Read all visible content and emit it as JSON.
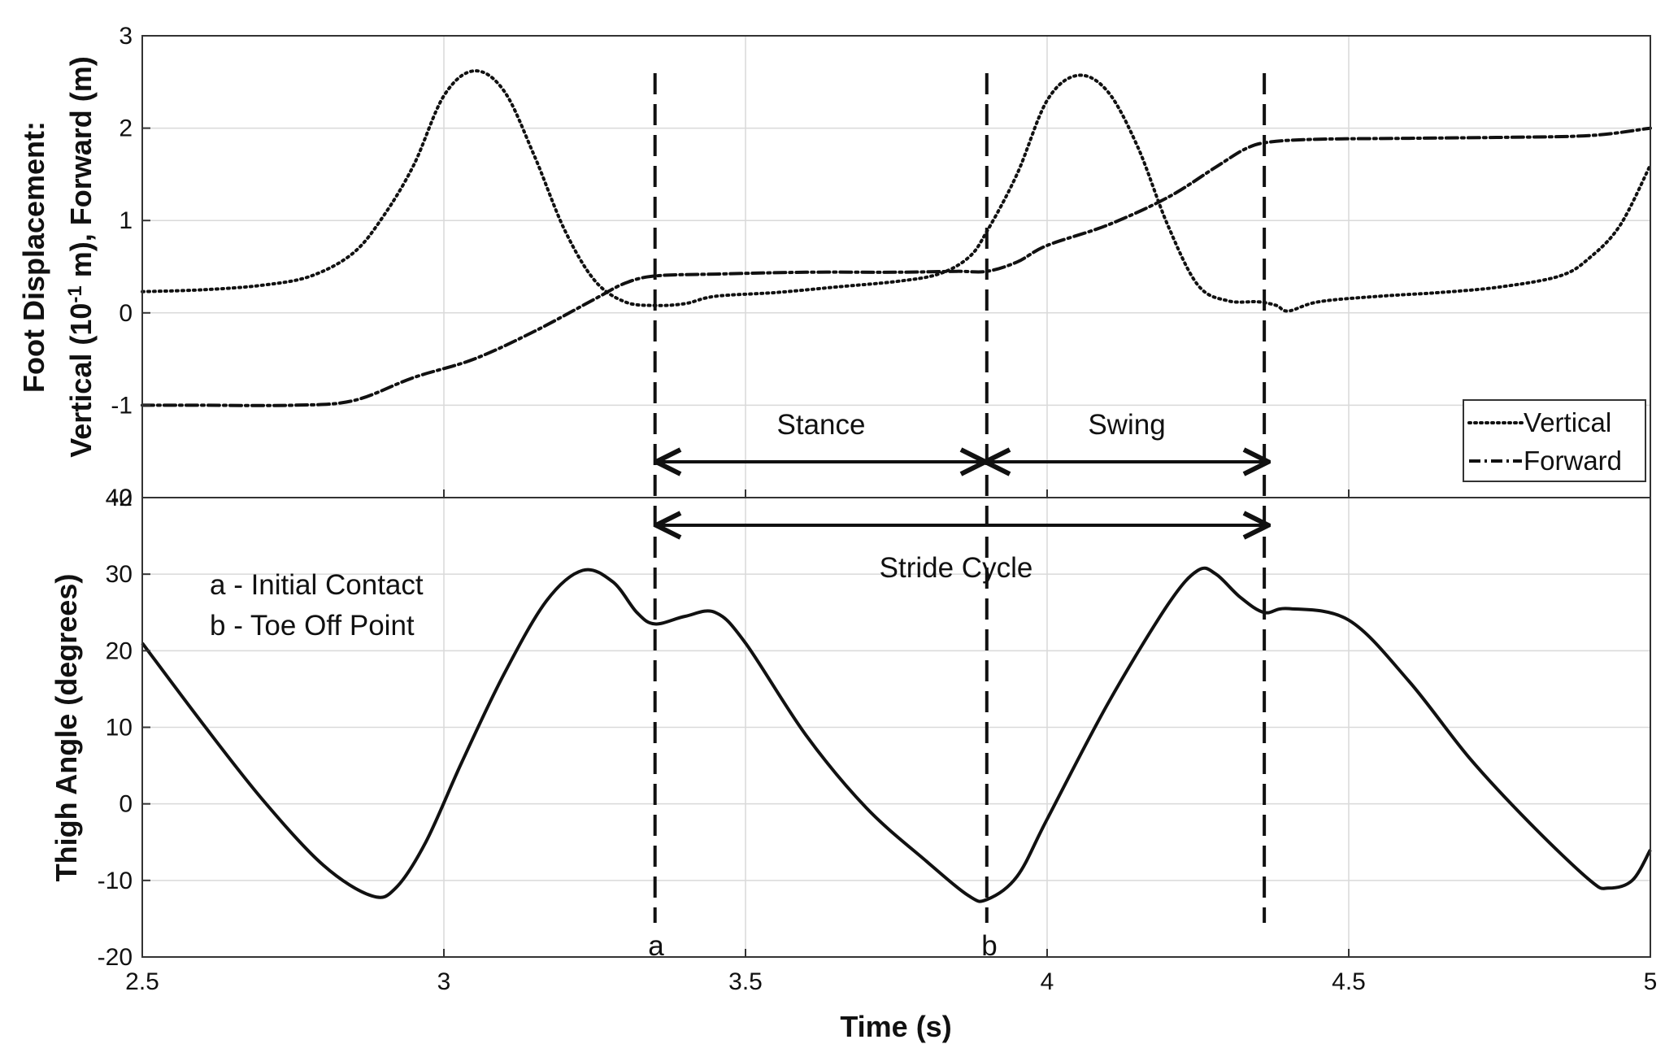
{
  "chart_data": [
    {
      "type": "line",
      "panel": "top",
      "ylabel_line1": "Foot Displacement:",
      "ylabel_line2_prefix": "Vertical (10",
      "ylabel_line2_sup": "-1",
      "ylabel_line2_suffix": " m), Forward (m)",
      "xlim": [
        2.5,
        5
      ],
      "ylim": [
        -2,
        3
      ],
      "yticks": [
        -2,
        -1,
        0,
        1,
        2,
        3
      ],
      "ytick_labels": [
        "-2",
        "-1",
        "0",
        "1",
        "2",
        "3"
      ],
      "grid": true,
      "legend_position": "bottom-right",
      "series": [
        {
          "name": "Vertical",
          "style": "dotted",
          "points": [
            [
              2.5,
              0.23
            ],
            [
              2.6,
              0.25
            ],
            [
              2.7,
              0.3
            ],
            [
              2.78,
              0.4
            ],
            [
              2.85,
              0.65
            ],
            [
              2.9,
              1.05
            ],
            [
              2.95,
              1.6
            ],
            [
              3.0,
              2.35
            ],
            [
              3.05,
              2.62
            ],
            [
              3.1,
              2.4
            ],
            [
              3.15,
              1.7
            ],
            [
              3.2,
              0.9
            ],
            [
              3.25,
              0.35
            ],
            [
              3.3,
              0.12
            ],
            [
              3.35,
              0.08
            ],
            [
              3.4,
              0.1
            ],
            [
              3.45,
              0.18
            ],
            [
              3.55,
              0.22
            ],
            [
              3.65,
              0.28
            ],
            [
              3.75,
              0.34
            ],
            [
              3.82,
              0.42
            ],
            [
              3.87,
              0.6
            ],
            [
              3.9,
              0.88
            ],
            [
              3.95,
              1.5
            ],
            [
              4.0,
              2.3
            ],
            [
              4.05,
              2.57
            ],
            [
              4.1,
              2.4
            ],
            [
              4.15,
              1.8
            ],
            [
              4.2,
              0.95
            ],
            [
              4.25,
              0.3
            ],
            [
              4.3,
              0.13
            ],
            [
              4.35,
              0.12
            ],
            [
              4.38,
              0.08
            ],
            [
              4.4,
              0.02
            ],
            [
              4.45,
              0.12
            ],
            [
              4.55,
              0.18
            ],
            [
              4.65,
              0.22
            ],
            [
              4.75,
              0.28
            ],
            [
              4.85,
              0.4
            ],
            [
              4.9,
              0.6
            ],
            [
              4.95,
              0.95
            ],
            [
              5.0,
              1.6
            ]
          ]
        },
        {
          "name": "Forward",
          "style": "dashdot",
          "points": [
            [
              2.5,
              -1.0
            ],
            [
              2.6,
              -1.0
            ],
            [
              2.75,
              -1.0
            ],
            [
              2.85,
              -0.95
            ],
            [
              2.95,
              -0.7
            ],
            [
              3.05,
              -0.5
            ],
            [
              3.15,
              -0.2
            ],
            [
              3.25,
              0.15
            ],
            [
              3.3,
              0.32
            ],
            [
              3.35,
              0.4
            ],
            [
              3.45,
              0.42
            ],
            [
              3.6,
              0.44
            ],
            [
              3.75,
              0.44
            ],
            [
              3.85,
              0.45
            ],
            [
              3.9,
              0.45
            ],
            [
              3.95,
              0.55
            ],
            [
              4.0,
              0.73
            ],
            [
              4.1,
              0.95
            ],
            [
              4.2,
              1.25
            ],
            [
              4.28,
              1.58
            ],
            [
              4.33,
              1.78
            ],
            [
              4.37,
              1.85
            ],
            [
              4.45,
              1.88
            ],
            [
              4.6,
              1.89
            ],
            [
              4.75,
              1.9
            ],
            [
              4.9,
              1.92
            ],
            [
              5.0,
              2.0
            ]
          ]
        }
      ]
    },
    {
      "type": "line",
      "panel": "bottom",
      "title": "",
      "xlabel": "Time (s)",
      "ylabel": "Thigh Angle (degrees)",
      "xlim": [
        2.5,
        5
      ],
      "ylim": [
        -20,
        40
      ],
      "xticks": [
        2.5,
        3,
        3.5,
        4,
        4.5,
        5
      ],
      "xtick_labels": [
        "2.5",
        "3",
        "3.5",
        "4",
        "4.5",
        "5"
      ],
      "yticks": [
        -20,
        -10,
        0,
        10,
        20,
        30,
        40
      ],
      "ytick_labels": [
        "-20",
        "-10",
        "0",
        "10",
        "20",
        "30",
        "40"
      ],
      "grid": true,
      "series": [
        {
          "name": "Thigh Angle",
          "style": "solid",
          "points": [
            [
              2.5,
              21
            ],
            [
              2.6,
              10.5
            ],
            [
              2.7,
              0.5
            ],
            [
              2.8,
              -8
            ],
            [
              2.88,
              -12
            ],
            [
              2.92,
              -11
            ],
            [
              2.97,
              -5
            ],
            [
              3.03,
              5.5
            ],
            [
              3.1,
              17
            ],
            [
              3.17,
              26.5
            ],
            [
              3.23,
              30.5
            ],
            [
              3.28,
              29
            ],
            [
              3.32,
              25
            ],
            [
              3.35,
              23.5
            ],
            [
              3.4,
              24.5
            ],
            [
              3.45,
              25
            ],
            [
              3.5,
              21
            ],
            [
              3.6,
              9
            ],
            [
              3.7,
              -0.5
            ],
            [
              3.8,
              -7.5
            ],
            [
              3.87,
              -12
            ],
            [
              3.9,
              -12.5
            ],
            [
              3.95,
              -9.5
            ],
            [
              4.0,
              -2
            ],
            [
              4.1,
              13
            ],
            [
              4.2,
              26
            ],
            [
              4.25,
              30.5
            ],
            [
              4.28,
              30
            ],
            [
              4.32,
              27
            ],
            [
              4.36,
              25
            ],
            [
              4.4,
              25.5
            ],
            [
              4.5,
              24
            ],
            [
              4.6,
              16
            ],
            [
              4.7,
              6
            ],
            [
              4.8,
              -2.5
            ],
            [
              4.9,
              -10
            ],
            [
              4.93,
              -11
            ],
            [
              4.97,
              -10
            ],
            [
              5.0,
              -6
            ]
          ]
        }
      ]
    }
  ],
  "events": {
    "initial_contact": {
      "x": 3.35,
      "label": "a"
    },
    "toe_off": {
      "x": 3.9,
      "label": "b"
    },
    "end_of_stride": {
      "x": 4.36
    }
  },
  "annotations": {
    "stance": "Stance",
    "swing": "Swing",
    "stride_cycle": "Stride Cycle",
    "note_a": "a - Initial Contact",
    "note_b": "b - Toe Off Point"
  },
  "legend": {
    "vertical": "Vertical",
    "forward": "Forward"
  },
  "colors": {
    "line": "#111111",
    "grid": "#d9d9d9",
    "axis": "#333333"
  }
}
